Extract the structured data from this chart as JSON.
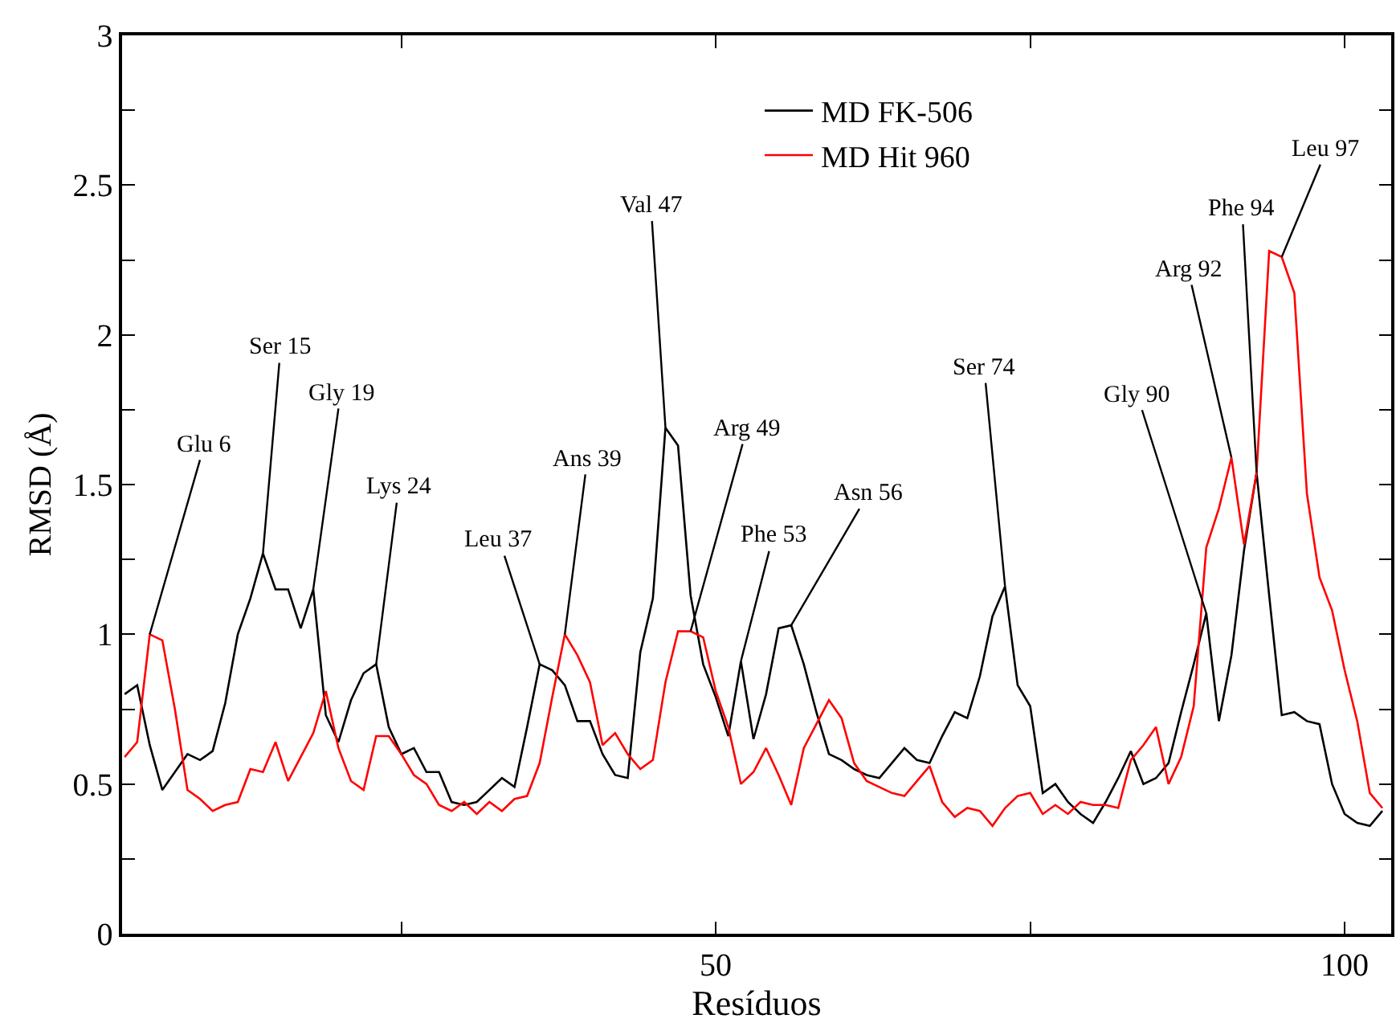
{
  "chart_data": {
    "type": "line",
    "xlabel": "Resíduos",
    "ylabel": "RMSD (Å)",
    "x": [
      3,
      4,
      5,
      6,
      7,
      8,
      9,
      10,
      11,
      12,
      13,
      14,
      15,
      16,
      17,
      18,
      19,
      20,
      21,
      22,
      23,
      24,
      25,
      26,
      27,
      28,
      29,
      30,
      31,
      32,
      33,
      34,
      35,
      36,
      37,
      38,
      39,
      40,
      41,
      42,
      43,
      44,
      45,
      46,
      47,
      48,
      49,
      50,
      51,
      52,
      53,
      54,
      55,
      56,
      57,
      58,
      59,
      60,
      61,
      62,
      63,
      64,
      65,
      66,
      67,
      68,
      69,
      70,
      71,
      72,
      73,
      74,
      75,
      76,
      77,
      78,
      79,
      80,
      81,
      82,
      83,
      84,
      85,
      86,
      87,
      88,
      89,
      90,
      91,
      92,
      93,
      94,
      95,
      96,
      97,
      98,
      99,
      100,
      101,
      102,
      103
    ],
    "series": [
      {
        "name": "MD FK-506",
        "color": "#000000",
        "values": [
          0.8,
          0.83,
          0.63,
          0.48,
          0.54,
          0.6,
          0.58,
          0.61,
          0.77,
          1.0,
          1.12,
          1.27,
          1.15,
          1.15,
          1.02,
          1.15,
          0.73,
          0.64,
          0.78,
          0.87,
          0.9,
          0.69,
          0.6,
          0.62,
          0.54,
          0.54,
          0.44,
          0.43,
          0.44,
          0.48,
          0.52,
          0.49,
          0.69,
          0.9,
          0.88,
          0.83,
          0.71,
          0.71,
          0.6,
          0.53,
          0.52,
          0.94,
          1.12,
          1.69,
          1.63,
          1.13,
          0.9,
          0.79,
          0.66,
          0.91,
          0.65,
          0.8,
          1.02,
          1.03,
          0.9,
          0.74,
          0.6,
          0.58,
          0.55,
          0.53,
          0.52,
          0.57,
          0.62,
          0.58,
          0.57,
          0.66,
          0.74,
          0.72,
          0.86,
          1.06,
          1.16,
          0.83,
          0.76,
          0.47,
          0.5,
          0.44,
          0.4,
          0.37,
          0.44,
          0.52,
          0.61,
          0.5,
          0.52,
          0.57,
          0.74,
          0.9,
          1.07,
          0.71,
          0.93,
          1.28,
          1.54,
          1.13,
          0.73,
          0.74,
          0.71,
          0.7,
          0.5,
          0.4,
          0.37,
          0.36,
          0.41
        ]
      },
      {
        "name": "MD Hit 960",
        "color": "#ff0000",
        "values": [
          0.59,
          0.64,
          1.0,
          0.98,
          0.75,
          0.48,
          0.45,
          0.41,
          0.43,
          0.44,
          0.55,
          0.54,
          0.64,
          0.51,
          0.59,
          0.67,
          0.81,
          0.62,
          0.51,
          0.48,
          0.66,
          0.66,
          0.6,
          0.53,
          0.5,
          0.43,
          0.41,
          0.44,
          0.4,
          0.44,
          0.41,
          0.45,
          0.46,
          0.57,
          0.79,
          1.0,
          0.93,
          0.84,
          0.63,
          0.67,
          0.6,
          0.55,
          0.58,
          0.84,
          1.01,
          1.01,
          0.99,
          0.81,
          0.69,
          0.5,
          0.54,
          0.62,
          0.53,
          0.43,
          0.62,
          0.7,
          0.78,
          0.72,
          0.57,
          0.51,
          0.49,
          0.47,
          0.46,
          0.51,
          0.56,
          0.44,
          0.39,
          0.42,
          0.41,
          0.36,
          0.42,
          0.46,
          0.47,
          0.4,
          0.43,
          0.4,
          0.44,
          0.43,
          0.43,
          0.42,
          0.58,
          0.63,
          0.69,
          0.5,
          0.59,
          0.76,
          1.29,
          1.42,
          1.59,
          1.3,
          1.54,
          2.28,
          2.26,
          2.14,
          1.47,
          1.19,
          1.08,
          0.88,
          0.71,
          0.47,
          0.42
        ]
      }
    ],
    "xlim": [
      2.8,
      103.7
    ],
    "xticks": [
      {
        "value": 25,
        "label": null
      },
      50,
      {
        "value": 75,
        "label": null
      },
      100
    ],
    "ylim": [
      0,
      3
    ],
    "yticks": [
      0,
      {
        "value": 0.25,
        "label": null
      },
      0.5,
      {
        "value": 0.75,
        "label": null
      },
      1,
      {
        "value": 1.25,
        "label": null
      },
      1.5,
      {
        "value": 1.75,
        "label": null
      },
      2,
      {
        "value": 2.25,
        "label": null
      },
      2.5,
      {
        "value": 2.75,
        "label": null
      },
      3
    ],
    "legend": "top",
    "marker": "none",
    "line_style": "solid",
    "annotations": [
      {
        "text": "Glu 6",
        "x": 5,
        "y": 1.0
      },
      {
        "text": "Ser 15",
        "x": 14,
        "y": 1.27
      },
      {
        "text": "Gly 19",
        "x": 18,
        "y": 1.15
      },
      {
        "text": "Lys 24",
        "x": 23,
        "y": 0.9
      },
      {
        "text": "Leu 37",
        "x": 36,
        "y": 0.9
      },
      {
        "text": "Ans 39",
        "x": 38,
        "y": 1.0
      },
      {
        "text": "Val 47",
        "x": 46,
        "y": 1.69
      },
      {
        "text": "Arg 49",
        "x": 48,
        "y": 1.01
      },
      {
        "text": "Phe 53",
        "x": 52,
        "y": 0.91
      },
      {
        "text": "Asn 56",
        "x": 56,
        "y": 1.03
      },
      {
        "text": "Ser 74",
        "x": 73,
        "y": 1.16
      },
      {
        "text": "Gly 90",
        "x": 89,
        "y": 1.07
      },
      {
        "text": "Arg 92",
        "x": 91,
        "y": 1.59
      },
      {
        "text": "Phe 94",
        "x": 93,
        "y": 1.54
      },
      {
        "text": "Leu 97",
        "x": 95,
        "y": 2.26
      }
    ]
  }
}
